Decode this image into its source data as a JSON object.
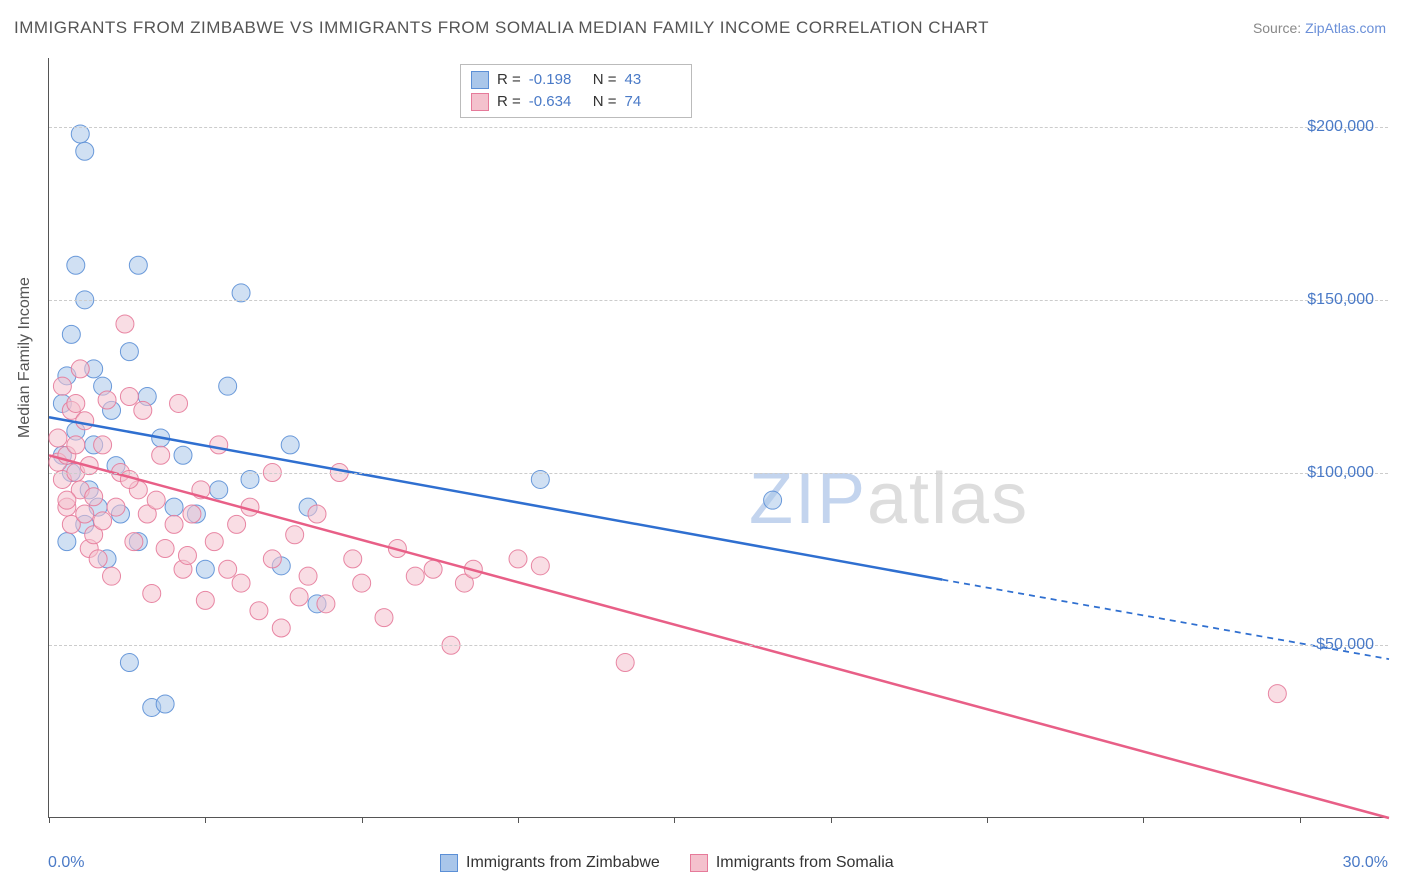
{
  "title": "IMMIGRANTS FROM ZIMBABWE VS IMMIGRANTS FROM SOMALIA MEDIAN FAMILY INCOME CORRELATION CHART",
  "source_label": "Source:",
  "source_name": "ZipAtlas.com",
  "watermark_a": "ZIP",
  "watermark_b": "atlas",
  "chart": {
    "type": "scatter",
    "background_color": "#ffffff",
    "grid_color": "#cccccc",
    "axis_color": "#555555",
    "ylabel": "Median Family Income",
    "label_fontsize": 16,
    "xlim": [
      0,
      30
    ],
    "ylim": [
      0,
      220000
    ],
    "x_tick_start_label": "0.0%",
    "x_tick_end_label": "30.0%",
    "x_tick_positions_pct": [
      0,
      3.5,
      7,
      10.5,
      14,
      17.5,
      21,
      24.5,
      28
    ],
    "y_gridlines": [
      50000,
      100000,
      150000,
      200000
    ],
    "y_tick_labels": [
      "$50,000",
      "$100,000",
      "$150,000",
      "$200,000"
    ],
    "tick_label_color": "#4a7ac7",
    "marker_radius": 9,
    "marker_opacity": 0.55,
    "marker_stroke_opacity": 0.9,
    "line_width": 2.5,
    "series": [
      {
        "name": "Immigrants from Zimbabwe",
        "color_fill": "#a9c6ea",
        "color_stroke": "#5b8fd6",
        "line_color": "#2f6fd0",
        "R": "-0.198",
        "N": "43",
        "trend_solid": {
          "x1": 0,
          "y1": 116000,
          "x2": 20,
          "y2": 69000
        },
        "trend_dashed": {
          "x1": 20,
          "y1": 69000,
          "x2": 30,
          "y2": 46000
        },
        "points": [
          [
            0.3,
            105000
          ],
          [
            0.3,
            120000
          ],
          [
            0.4,
            128000
          ],
          [
            0.5,
            140000
          ],
          [
            0.5,
            100000
          ],
          [
            0.6,
            160000
          ],
          [
            0.6,
            112000
          ],
          [
            0.7,
            198000
          ],
          [
            0.8,
            193000
          ],
          [
            0.8,
            150000
          ],
          [
            0.8,
            85000
          ],
          [
            0.9,
            95000
          ],
          [
            1.0,
            130000
          ],
          [
            1.0,
            108000
          ],
          [
            1.1,
            90000
          ],
          [
            1.2,
            125000
          ],
          [
            1.3,
            75000
          ],
          [
            1.4,
            118000
          ],
          [
            1.5,
            102000
          ],
          [
            1.6,
            88000
          ],
          [
            1.8,
            135000
          ],
          [
            1.8,
            45000
          ],
          [
            2.0,
            160000
          ],
          [
            2.0,
            80000
          ],
          [
            2.2,
            122000
          ],
          [
            2.3,
            32000
          ],
          [
            2.5,
            110000
          ],
          [
            2.6,
            33000
          ],
          [
            2.8,
            90000
          ],
          [
            3.0,
            105000
          ],
          [
            3.3,
            88000
          ],
          [
            3.5,
            72000
          ],
          [
            3.8,
            95000
          ],
          [
            4.0,
            125000
          ],
          [
            4.3,
            152000
          ],
          [
            4.5,
            98000
          ],
          [
            5.2,
            73000
          ],
          [
            5.4,
            108000
          ],
          [
            5.8,
            90000
          ],
          [
            6.0,
            62000
          ],
          [
            11.0,
            98000
          ],
          [
            16.2,
            92000
          ],
          [
            0.4,
            80000
          ]
        ]
      },
      {
        "name": "Immigrants from Somalia",
        "color_fill": "#f4c1cd",
        "color_stroke": "#e67a9a",
        "line_color": "#e85f87",
        "R": "-0.634",
        "N": "74",
        "trend_solid": {
          "x1": 0,
          "y1": 105000,
          "x2": 30,
          "y2": 0
        },
        "trend_dashed": null,
        "points": [
          [
            0.2,
            103000
          ],
          [
            0.2,
            110000
          ],
          [
            0.3,
            98000
          ],
          [
            0.3,
            125000
          ],
          [
            0.4,
            105000
          ],
          [
            0.4,
            90000
          ],
          [
            0.5,
            118000
          ],
          [
            0.5,
            85000
          ],
          [
            0.6,
            100000
          ],
          [
            0.6,
            108000
          ],
          [
            0.7,
            95000
          ],
          [
            0.7,
            130000
          ],
          [
            0.8,
            88000
          ],
          [
            0.8,
            115000
          ],
          [
            0.9,
            78000
          ],
          [
            0.9,
            102000
          ],
          [
            1.0,
            93000
          ],
          [
            1.0,
            82000
          ],
          [
            1.1,
            75000
          ],
          [
            1.2,
            108000
          ],
          [
            1.3,
            121000
          ],
          [
            1.4,
            70000
          ],
          [
            1.5,
            90000
          ],
          [
            1.6,
            100000
          ],
          [
            1.7,
            143000
          ],
          [
            1.8,
            122000
          ],
          [
            1.9,
            80000
          ],
          [
            2.0,
            95000
          ],
          [
            2.1,
            118000
          ],
          [
            2.2,
            88000
          ],
          [
            2.3,
            65000
          ],
          [
            2.5,
            105000
          ],
          [
            2.6,
            78000
          ],
          [
            2.8,
            85000
          ],
          [
            2.9,
            120000
          ],
          [
            3.0,
            72000
          ],
          [
            3.2,
            88000
          ],
          [
            3.4,
            95000
          ],
          [
            3.5,
            63000
          ],
          [
            3.7,
            80000
          ],
          [
            3.8,
            108000
          ],
          [
            4.0,
            72000
          ],
          [
            4.2,
            85000
          ],
          [
            4.5,
            90000
          ],
          [
            4.7,
            60000
          ],
          [
            5.0,
            100000
          ],
          [
            5.0,
            75000
          ],
          [
            5.2,
            55000
          ],
          [
            5.5,
            82000
          ],
          [
            5.8,
            70000
          ],
          [
            6.0,
            88000
          ],
          [
            6.2,
            62000
          ],
          [
            6.5,
            100000
          ],
          [
            6.8,
            75000
          ],
          [
            7.0,
            68000
          ],
          [
            7.5,
            58000
          ],
          [
            7.8,
            78000
          ],
          [
            8.2,
            70000
          ],
          [
            8.6,
            72000
          ],
          [
            9.0,
            50000
          ],
          [
            9.3,
            68000
          ],
          [
            9.5,
            72000
          ],
          [
            10.5,
            75000
          ],
          [
            11.0,
            73000
          ],
          [
            12.9,
            45000
          ],
          [
            0.4,
            92000
          ],
          [
            0.6,
            120000
          ],
          [
            1.2,
            86000
          ],
          [
            1.8,
            98000
          ],
          [
            2.4,
            92000
          ],
          [
            3.1,
            76000
          ],
          [
            4.3,
            68000
          ],
          [
            5.6,
            64000
          ],
          [
            27.5,
            36000
          ]
        ]
      }
    ],
    "bottom_legend": [
      {
        "label": "Immigrants from Zimbabwe",
        "fill": "#a9c6ea",
        "stroke": "#5b8fd6"
      },
      {
        "label": "Immigrants from Somalia",
        "fill": "#f4c1cd",
        "stroke": "#e67a9a"
      }
    ]
  }
}
